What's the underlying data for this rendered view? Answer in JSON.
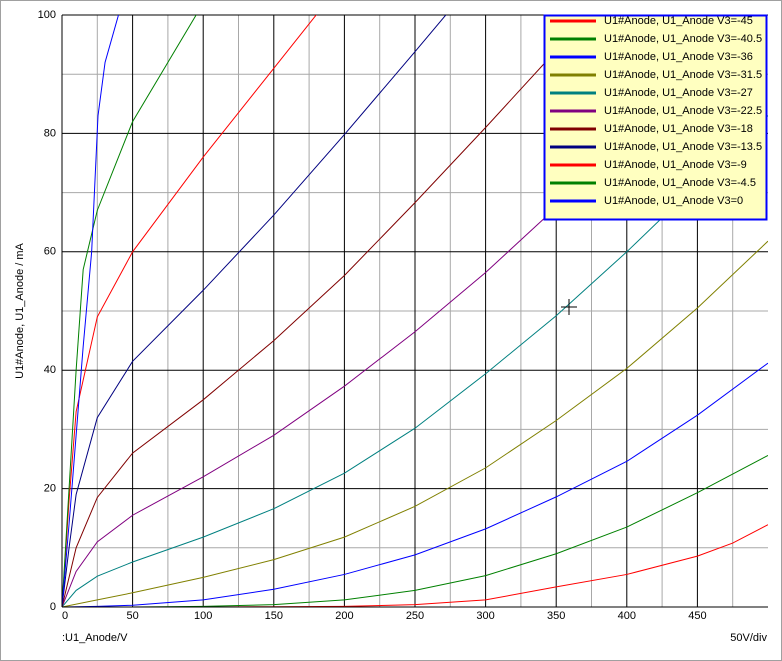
{
  "chart_data": {
    "type": "line",
    "y_label": "U1#Anode, U1_Anode / mA",
    "x_label": ":U1_Anode/V",
    "x_scale_label": "50V/div",
    "xlim": [
      0,
      500
    ],
    "xticks": [
      0,
      50,
      100,
      150,
      200,
      250,
      300,
      350,
      400,
      450
    ],
    "ylim": [
      0,
      100
    ],
    "yticks": [
      0,
      20,
      40,
      60,
      80,
      100
    ],
    "grid": true,
    "legend": "top-right",
    "series": [
      {
        "name": "U1#Anode, U1_Anode V3=-45",
        "color": "#ff0000",
        "x": [
          0,
          100,
          150,
          200,
          250,
          300,
          350,
          400,
          450,
          475,
          500
        ],
        "values": [
          0,
          0,
          0.05,
          0.1,
          0.4,
          1.2,
          3.4,
          5.5,
          8.6,
          10.8,
          13.9
        ]
      },
      {
        "name": "U1#Anode, U1_Anode V3=-40.5",
        "color": "#008000",
        "x": [
          0,
          50,
          100,
          150,
          200,
          250,
          300,
          350,
          400,
          450,
          500
        ],
        "values": [
          0,
          0,
          0.1,
          0.4,
          1.2,
          2.8,
          5.3,
          9,
          13.5,
          19.3,
          25.6
        ]
      },
      {
        "name": "U1#Anode, U1_Anode V3=-36",
        "color": "#0000ff",
        "x": [
          0,
          25,
          50,
          100,
          150,
          200,
          250,
          300,
          350,
          400,
          450,
          500
        ],
        "values": [
          0,
          0.1,
          0.3,
          1.2,
          3,
          5.5,
          8.8,
          13.2,
          18.6,
          24.6,
          32.4,
          41.2
        ]
      },
      {
        "name": "U1#Anode, U1_Anode V3=-31.5",
        "color": "#808000",
        "x": [
          0,
          25,
          50,
          100,
          150,
          200,
          250,
          300,
          350,
          400,
          450,
          500
        ],
        "values": [
          0,
          1.2,
          2.4,
          5,
          8,
          11.8,
          17,
          23.5,
          31.5,
          40.3,
          50.5,
          61.8
        ]
      },
      {
        "name": "U1#Anode, U1_Anode V3=-27",
        "color": "#008080",
        "x": [
          0,
          10,
          25,
          50,
          100,
          150,
          200,
          250,
          300,
          350,
          400,
          450,
          500
        ],
        "values": [
          0,
          2.8,
          5.2,
          7.6,
          11.8,
          16.6,
          22.6,
          30.2,
          39.4,
          49.2,
          60,
          71.5,
          83
        ]
      },
      {
        "name": "U1#Anode, U1_Anode V3=-22.5",
        "color": "#800080",
        "x": [
          0,
          10,
          25,
          50,
          100,
          150,
          200,
          250,
          300,
          350,
          400,
          450,
          500
        ],
        "values": [
          0,
          6,
          11,
          15.5,
          22,
          29,
          37.3,
          46.5,
          56.5,
          67.5,
          79,
          91,
          103
        ]
      },
      {
        "name": "U1#Anode, U1_Anode V3=-18",
        "color": "#800000",
        "x": [
          0,
          10,
          25,
          50,
          100,
          150,
          200,
          250,
          300,
          350,
          400
        ],
        "values": [
          0,
          10,
          18.5,
          26,
          35,
          45,
          56,
          68.3,
          81,
          94,
          107
        ]
      },
      {
        "name": "U1#Anode, U1_Anode V3=-13.5",
        "color": "#000080",
        "x": [
          0,
          5,
          10,
          25,
          50,
          100,
          150,
          200,
          250,
          300
        ],
        "values": [
          0,
          10,
          19,
          32,
          41.5,
          53.5,
          66.2,
          79.8,
          93.8,
          108
        ]
      },
      {
        "name": "U1#Anode, U1_Anode V3=-9",
        "color": "#ff0000",
        "x": [
          0,
          5,
          10,
          25,
          50,
          100,
          150,
          200
        ],
        "values": [
          0,
          18,
          33,
          49,
          60,
          76,
          91,
          106
        ]
      },
      {
        "name": "U1#Anode, U1_Anode V3=-4.5",
        "color": "#008000",
        "x": [
          0,
          5,
          10,
          15,
          25,
          50,
          75,
          100
        ],
        "values": [
          0,
          20,
          40,
          57,
          67,
          82,
          92,
          102
        ]
      },
      {
        "name": "U1#Anode, U1_Anode V3=0",
        "color": "#0000ff",
        "x": [
          0,
          5,
          10,
          15,
          21,
          25.5,
          30.5,
          40,
          45
        ],
        "values": [
          0,
          14,
          29,
          44,
          60,
          83,
          92,
          100,
          103
        ]
      }
    ]
  }
}
